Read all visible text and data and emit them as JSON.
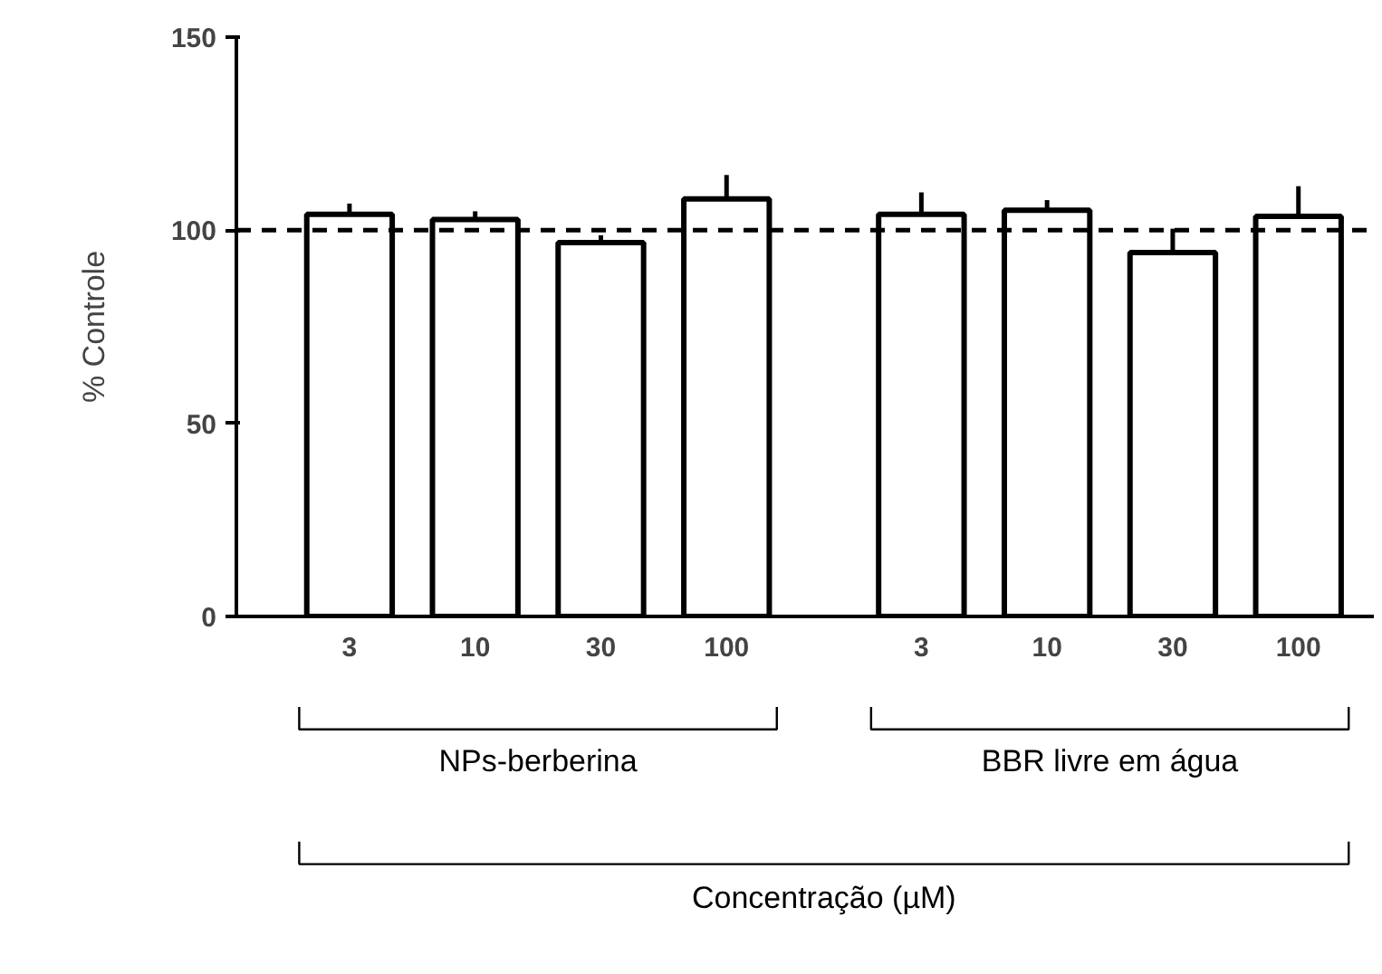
{
  "chart_data": {
    "type": "bar",
    "ylabel": "% Controle",
    "categories": [
      "3",
      "10",
      "30",
      "100",
      "3",
      "10",
      "30",
      "100"
    ],
    "values": [
      104.1,
      102.8,
      96.8,
      108.1,
      104.1,
      105.2,
      94.2,
      103.6
    ],
    "errors": [
      2.8,
      2.1,
      1.9,
      6.2,
      5.7,
      2.6,
      6.2,
      7.8
    ],
    "color": "#ffffff",
    "ylim": [
      0,
      150
    ],
    "yticks": [
      0,
      50,
      100,
      150
    ],
    "ref_lines": [
      {
        "axis": "y",
        "value": 100,
        "line_style": "dashed",
        "color": "#000000"
      }
    ],
    "annotations": [
      "NPs-berberina",
      "BBR livre em água",
      "Concentração (µM)"
    ],
    "grid": false
  }
}
